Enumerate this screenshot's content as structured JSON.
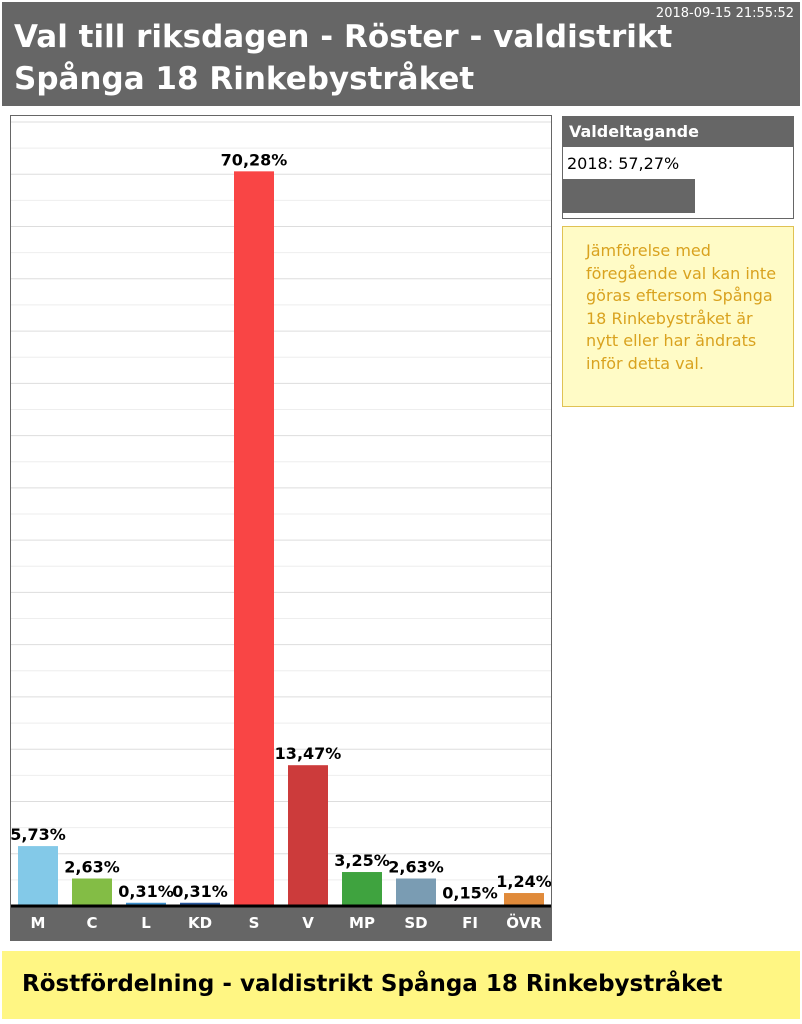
{
  "header": {
    "timestamp": "2018-09-15 21:55:52",
    "title": "Val till riksdagen - Röster - valdistrikt Spånga 18 Rinkebystråket"
  },
  "turnout": {
    "label": "Valdeltagande",
    "value_text": "2018: 57,27%",
    "value": 57.27
  },
  "note": {
    "text": "Jämförelse med föregående val kan inte göras eftersom Spånga 18 Rinkebystråket är nytt eller har ändrats inför detta val."
  },
  "footer": {
    "text": "Röstfördelning - valdistrikt Spånga 18 Rinkebystråket"
  },
  "chart_data": {
    "type": "bar",
    "categories": [
      "M",
      "C",
      "L",
      "KD",
      "S",
      "V",
      "MP",
      "SD",
      "FI",
      "ÖVR"
    ],
    "values": [
      5.73,
      2.63,
      0.31,
      0.31,
      70.28,
      13.47,
      3.25,
      2.63,
      0.15,
      1.24
    ],
    "labels": [
      "5,73%",
      "2,63%",
      "0,31%",
      "0,31%",
      "70,28%",
      "13,47%",
      "3,25%",
      "2,63%",
      "0,15%",
      "1,24%"
    ],
    "colors": [
      "#83c9e8",
      "#83bd45",
      "#3d8fcc",
      "#2a5aa0",
      "#f94545",
      "#cc3b3b",
      "#3fa33f",
      "#7a9cb3",
      "#cc3b8a",
      "#e08a3a"
    ],
    "ylim": [
      0,
      75
    ],
    "grid": true
  }
}
